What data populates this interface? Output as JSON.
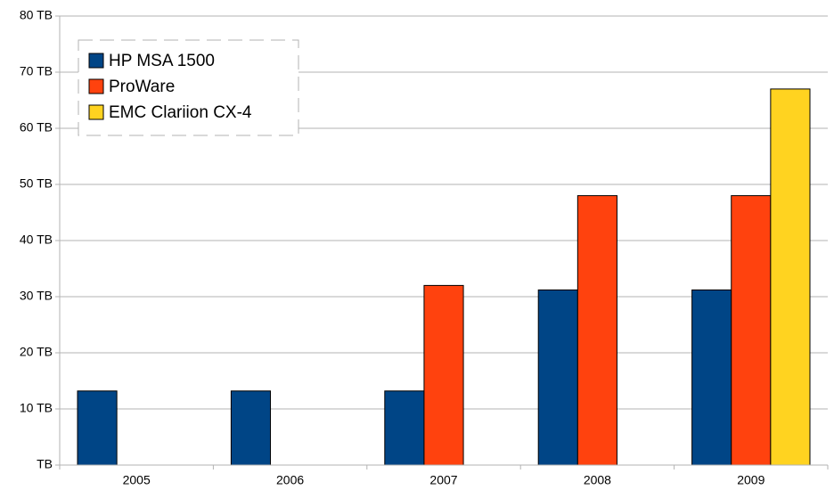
{
  "chart_data": {
    "type": "bar",
    "categories": [
      "2005",
      "2006",
      "2007",
      "2008",
      "2009"
    ],
    "series": [
      {
        "name": "HP MSA 1500",
        "color": "#004586",
        "values": [
          13.2,
          13.2,
          13.2,
          31.2,
          31.2
        ]
      },
      {
        "name": "ProWare",
        "color": "#ff420e",
        "values": [
          null,
          null,
          32,
          48,
          48
        ]
      },
      {
        "name": "EMC Clariion CX-4",
        "color": "#ffd320",
        "values": [
          null,
          null,
          null,
          null,
          67
        ]
      }
    ],
    "ylim": [
      0,
      80
    ],
    "yticks": [
      {
        "value": 0,
        "label": "TB"
      },
      {
        "value": 10,
        "label": "10 TB"
      },
      {
        "value": 20,
        "label": "20 TB"
      },
      {
        "value": 30,
        "label": "30 TB"
      },
      {
        "value": 40,
        "label": "40 TB"
      },
      {
        "value": 50,
        "label": "50 TB"
      },
      {
        "value": 60,
        "label": "60 TB"
      },
      {
        "value": 70,
        "label": "70 TB"
      },
      {
        "value": 80,
        "label": "80 TB"
      }
    ],
    "grid": true,
    "legend": "top-left"
  }
}
